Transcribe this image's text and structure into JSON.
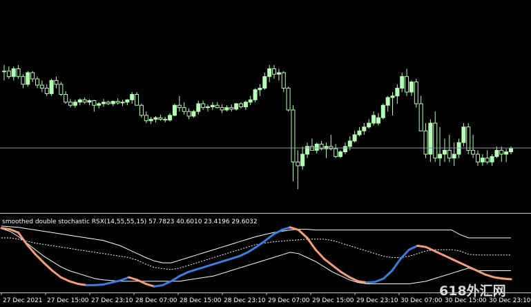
{
  "indicator": {
    "header": "smoothed double stochastic RSX(14,55,55,15) 57.7823 40.6010 23.4196 29.6032"
  },
  "watermark": "618外汇网",
  "x_axis_labels": [
    "27 Dec 2021",
    "27 Dec 15:00",
    "27 Dec 23:10",
    "28 Dec 07:00",
    "28 Dec 15:00",
    "28 Dec 23:10",
    "29 Dec 07:00",
    "29 Dec 15:00",
    "29 Dec 23:10",
    "30 Dec 07:00",
    "30 Dec 15:00",
    "30 Dec 23:10"
  ],
  "colors": {
    "background": "#000000",
    "bull_candle": "#b4ffb4",
    "bear_candle": "#000000",
    "wick": "#b4ffb4",
    "price_line": "#8a9bab",
    "separator": "#c8c8c8",
    "rsx_up": "#3a7ee0",
    "rsx_down": "#f4a07a",
    "bands": "#ffffff"
  },
  "chart_data": [
    {
      "type": "candlestick",
      "title": "",
      "series": [
        {
          "name": "",
          "values": [
            [
              62,
              70,
              50,
              62
            ],
            [
              62,
              68,
              52,
              55
            ],
            [
              55,
              68,
              50,
              65
            ],
            [
              65,
              70,
              52,
              55
            ],
            [
              55,
              58,
              40,
              45
            ],
            [
              45,
              62,
              42,
              60
            ],
            [
              60,
              62,
              48,
              52
            ],
            [
              52,
              55,
              40,
              44
            ],
            [
              44,
              50,
              35,
              40
            ],
            [
              40,
              45,
              30,
              33
            ],
            [
              33,
              52,
              30,
              50
            ],
            [
              50,
              55,
              40,
              45
            ],
            [
              45,
              48,
              30,
              32
            ],
            [
              32,
              36,
              20,
              22
            ],
            [
              22,
              26,
              15,
              18
            ],
            [
              18,
              25,
              15,
              22
            ],
            [
              22,
              27,
              18,
              25
            ],
            [
              25,
              28,
              20,
              22
            ],
            [
              22,
              26,
              18,
              24
            ],
            [
              24,
              25,
              10,
              18
            ],
            [
              18,
              22,
              14,
              20
            ],
            [
              20,
              26,
              16,
              22
            ],
            [
              22,
              24,
              18,
              20
            ],
            [
              20,
              24,
              17,
              23
            ],
            [
              23,
              27,
              19,
              21
            ],
            [
              21,
              25,
              17,
              22
            ],
            [
              22,
              26,
              18,
              25
            ],
            [
              25,
              35,
              20,
              32
            ],
            [
              32,
              35,
              20,
              18
            ],
            [
              18,
              20,
              2,
              5
            ],
            [
              5,
              10,
              -5,
              -2
            ],
            [
              -2,
              3,
              -6,
              0
            ],
            [
              0,
              4,
              -4,
              2
            ],
            [
              2,
              6,
              -2,
              0
            ],
            [
              0,
              3,
              -4,
              -1
            ],
            [
              -1,
              8,
              -3,
              5
            ],
            [
              5,
              20,
              4,
              18
            ],
            [
              18,
              30,
              10,
              15
            ],
            [
              15,
              22,
              6,
              10
            ],
            [
              10,
              14,
              0,
              4
            ],
            [
              4,
              12,
              2,
              10
            ],
            [
              10,
              24,
              6,
              20
            ],
            [
              20,
              24,
              12,
              15
            ],
            [
              15,
              19,
              10,
              16
            ],
            [
              16,
              22,
              12,
              18
            ],
            [
              18,
              22,
              14,
              15
            ],
            [
              15,
              19,
              8,
              12
            ],
            [
              12,
              18,
              10,
              15
            ],
            [
              15,
              19,
              10,
              13
            ],
            [
              13,
              21,
              11,
              20
            ],
            [
              20,
              22,
              14,
              16
            ],
            [
              16,
              24,
              12,
              22
            ],
            [
              22,
              30,
              18,
              25
            ],
            [
              25,
              40,
              22,
              38
            ],
            [
              38,
              45,
              30,
              40
            ],
            [
              40,
              60,
              38,
              55
            ],
            [
              55,
              70,
              48,
              65
            ],
            [
              65,
              70,
              52,
              58
            ],
            [
              58,
              65,
              50,
              60
            ],
            [
              60,
              62,
              35,
              40
            ],
            [
              40,
              42,
              10,
              12
            ],
            [
              12,
              18,
              -80,
              -55
            ],
            [
              -55,
              -40,
              -90,
              -60
            ],
            [
              -60,
              -35,
              -65,
              -45
            ],
            [
              -45,
              -30,
              -50,
              -35
            ],
            [
              -35,
              -25,
              -40,
              -40
            ],
            [
              -40,
              -30,
              -44,
              -32
            ],
            [
              -32,
              -28,
              -40,
              -38
            ],
            [
              -38,
              -30,
              -50,
              -35
            ],
            [
              -35,
              -20,
              -40,
              -38
            ],
            [
              -38,
              -32,
              -50,
              -48
            ],
            [
              -48,
              -40,
              -50,
              -42
            ],
            [
              -42,
              -30,
              -45,
              -35
            ],
            [
              -35,
              -22,
              -40,
              -28
            ],
            [
              -28,
              -15,
              -30,
              -20
            ],
            [
              -20,
              -10,
              -22,
              -15
            ],
            [
              -15,
              -5,
              -20,
              -10
            ],
            [
              -10,
              0,
              -12,
              -5
            ],
            [
              -5,
              10,
              -8,
              5
            ],
            [
              -5,
              8,
              -8,
              2
            ],
            [
              2,
              20,
              0,
              18
            ],
            [
              18,
              30,
              10,
              28
            ],
            [
              28,
              35,
              5,
              30
            ],
            [
              30,
              45,
              20,
              40
            ],
            [
              40,
              60,
              35,
              55
            ],
            [
              55,
              65,
              30,
              35
            ],
            [
              35,
              50,
              30,
              48
            ],
            [
              48,
              52,
              15,
              20
            ],
            [
              20,
              30,
              -10,
              -15
            ],
            [
              -15,
              -5,
              -50,
              -45
            ],
            [
              -45,
              0,
              -55,
              -5
            ],
            [
              -5,
              10,
              -55,
              -50
            ],
            [
              -50,
              -10,
              -60,
              -45
            ],
            [
              -45,
              -25,
              -55,
              -40
            ],
            [
              -40,
              -20,
              -55,
              -50
            ],
            [
              -50,
              -30,
              -60,
              -45
            ],
            [
              -45,
              -25,
              -50,
              -30
            ],
            [
              -30,
              -5,
              -35,
              -10
            ],
            [
              -10,
              -5,
              -45,
              -40
            ],
            [
              -40,
              -20,
              -50,
              -45
            ],
            [
              -45,
              -40,
              -60,
              -55
            ],
            [
              -55,
              -45,
              -60,
              -50
            ],
            [
              -50,
              -40,
              -58,
              -55
            ],
            [
              -55,
              -45,
              -60,
              -48
            ],
            [
              -48,
              -35,
              -50,
              -40
            ],
            [
              -40,
              -35,
              -55,
              -45
            ],
            [
              -45,
              -38,
              -55,
              -42
            ],
            [
              -42,
              -35,
              -45,
              -38
            ]
          ]
        }
      ],
      "value_order": "open,high,low,close",
      "ylim": [
        -110,
        150
      ],
      "current_price": -37
    },
    {
      "type": "line",
      "title": "smoothed double stochastic RSX(14,55,55,15) 57.7823 40.6010 23.4196 29.6032",
      "ylim": [
        0,
        100
      ],
      "series": [
        {
          "name": "",
          "values": [
            95,
            93,
            88,
            70,
            55,
            42,
            30,
            20,
            14,
            10,
            8,
            8,
            9,
            12,
            15,
            20,
            16,
            10,
            6,
            8,
            14,
            22,
            28,
            32,
            36,
            40,
            44,
            48,
            52,
            58,
            66,
            75,
            85,
            92,
            96,
            92,
            80,
            62,
            48,
            38,
            28,
            20,
            14,
            12,
            13,
            18,
            30,
            48,
            62,
            68,
            66,
            60,
            54,
            48,
            42,
            36,
            30,
            24,
            20,
            18,
            17
          ]
        },
        {
          "name": "",
          "values": [
            98,
            97,
            96,
            94,
            92,
            90,
            88,
            86,
            84,
            82,
            80,
            78,
            76,
            72,
            68,
            62,
            56,
            50,
            45,
            42,
            42,
            46,
            50,
            54,
            58,
            62,
            66,
            70,
            74,
            78,
            82,
            85,
            88,
            90,
            92,
            93,
            93,
            92,
            92,
            92,
            92,
            92,
            92,
            92,
            92,
            92,
            92,
            92,
            92,
            92,
            92,
            92,
            92,
            92,
            85,
            80,
            80,
            80,
            80,
            80,
            80
          ]
        },
        {
          "name": "",
          "values": [
            80,
            80,
            78,
            75,
            72,
            70,
            68,
            66,
            64,
            62,
            60,
            58,
            56,
            54,
            52,
            50,
            46,
            40,
            35,
            33,
            32,
            34,
            38,
            42,
            46,
            50,
            54,
            58,
            62,
            66,
            70,
            72,
            74,
            75,
            76,
            77,
            78,
            78,
            78,
            76,
            72,
            68,
            64,
            60,
            56,
            52,
            50,
            50,
            52,
            56,
            60,
            62,
            62,
            62,
            60,
            55,
            54,
            54,
            54,
            54,
            54
          ]
        },
        {
          "name": "",
          "values": [
            94,
            90,
            82,
            72,
            62,
            52,
            44,
            36,
            30,
            26,
            22,
            18,
            16,
            15,
            14,
            14,
            14,
            14,
            14,
            14,
            14,
            14,
            16,
            18,
            20,
            22,
            26,
            30,
            34,
            38,
            42,
            46,
            50,
            54,
            58,
            56,
            50,
            44,
            36,
            28,
            22,
            16,
            12,
            10,
            10,
            10,
            10,
            10,
            10,
            12,
            14,
            18,
            22,
            26,
            30,
            34,
            30,
            30,
            30,
            30,
            30
          ]
        }
      ],
      "line_colors": [
        "trend-colored",
        "#ffffff",
        "#ffffff",
        "#ffffff"
      ],
      "line_styles": [
        "solid",
        "solid",
        "dashed",
        "solid"
      ],
      "reference_levels": [
        98,
        35,
        10
      ]
    }
  ]
}
